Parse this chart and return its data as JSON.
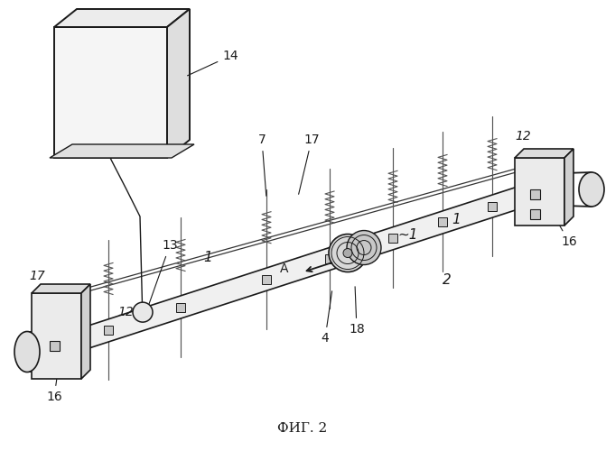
{
  "title": "ФИГ. 2",
  "background_color": "#ffffff",
  "line_color": "#1a1a1a",
  "line_width": 1.3,
  "label_fontsize": 10,
  "title_fontsize": 11
}
